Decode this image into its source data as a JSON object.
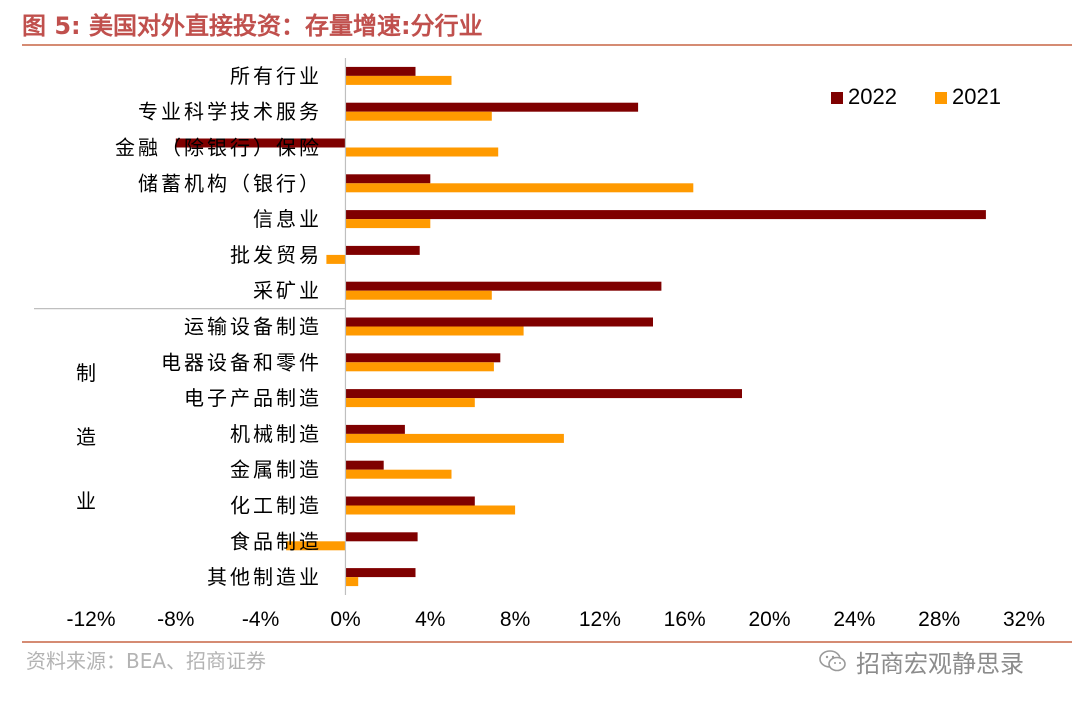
{
  "header": {
    "title": "图 5:  美国对外直接投资：存量增速:分行业"
  },
  "footer": {
    "source": "资料来源：BEA、招商证券",
    "wechat_label": "招商宏观静思录"
  },
  "colors": {
    "series_2022": "#7f0000",
    "series_2021": "#ff9a00",
    "accent": "#c0504d"
  },
  "chart_data": {
    "type": "bar",
    "orientation": "horizontal",
    "title": "美国对外直接投资：存量增速:分行业",
    "xlabel": "",
    "ylabel": "",
    "xlim": [
      -12,
      32
    ],
    "x_ticks": [
      "-12%",
      "-8%",
      "-4%",
      "0%",
      "4%",
      "8%",
      "12%",
      "16%",
      "20%",
      "24%",
      "28%",
      "32%"
    ],
    "legend_position": "top-right",
    "group_label": [
      "制",
      "造",
      "业"
    ],
    "categories": [
      "所有行业",
      "专业科学技术服务",
      "金融（除银行）保险",
      "储蓄机构（银行）",
      "信息业",
      "批发贸易",
      "采矿业",
      "运输设备制造",
      "电器设备和零件",
      "电子产品制造",
      "机械制造",
      "金属制造",
      "化工制造",
      "食品制造",
      "其他制造业"
    ],
    "series": [
      {
        "name": "2022",
        "values": [
          3.3,
          13.8,
          -8.0,
          4.0,
          30.2,
          3.5,
          14.9,
          14.5,
          7.3,
          18.7,
          2.8,
          1.8,
          6.1,
          3.4,
          3.3
        ]
      },
      {
        "name": "2021",
        "values": [
          5.0,
          6.9,
          7.2,
          16.4,
          4.0,
          -0.9,
          6.9,
          8.4,
          7.0,
          6.1,
          10.3,
          5.0,
          8.0,
          -2.8,
          0.6
        ]
      }
    ]
  }
}
